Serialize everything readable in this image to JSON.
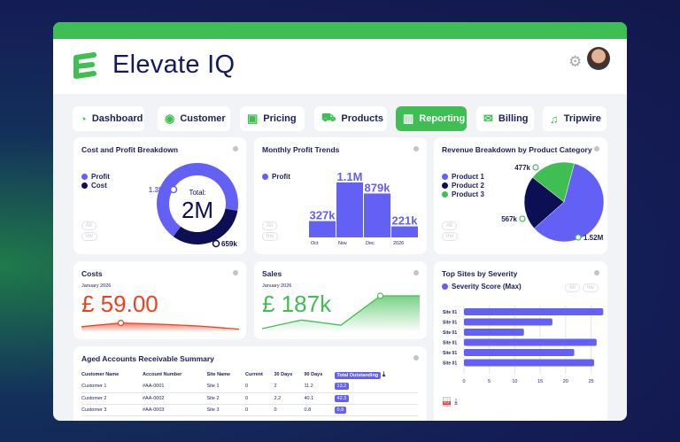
{
  "app": {
    "brand": "Elevate IQ",
    "accent": "#3fbf53",
    "primary": "#6360f5",
    "navy": "#0d0f55"
  },
  "header": {
    "settings_icon": "gear-icon",
    "avatar": "user-avatar"
  },
  "nav": [
    {
      "label": "Dashboard",
      "icon": "gauge-icon",
      "active": false
    },
    {
      "label": "Customer",
      "icon": "user-circle-icon",
      "active": false
    },
    {
      "label": "Pricing",
      "icon": "banknote-icon",
      "active": false
    },
    {
      "label": "Products",
      "icon": "truck-icon",
      "active": false
    },
    {
      "label": "Reporting",
      "icon": "bar-chart-icon",
      "active": true
    },
    {
      "label": "Billing",
      "icon": "envelope-icon",
      "active": false
    },
    {
      "label": "Tripwire",
      "icon": "bell-icon",
      "active": false
    }
  ],
  "filters": {
    "all": "All",
    "inv": "Inv"
  },
  "chart_data": [
    {
      "id": "cost-profit",
      "type": "pie",
      "title": "Cost and Profit Breakdown",
      "legend": [
        "Profit",
        "Cost"
      ],
      "values": [
        1380000,
        659000
      ],
      "labels": [
        "1.38M",
        "659k"
      ],
      "center_label": "Total:",
      "center_value": "2M",
      "colors": [
        "#6360f5",
        "#0d0f55"
      ]
    },
    {
      "id": "monthly-profit",
      "type": "bar",
      "title": "Monthly Profit Trends",
      "legend": [
        "Profit"
      ],
      "categories": [
        "Oct",
        "Nov",
        "Dec",
        "2026"
      ],
      "values": [
        327000,
        1100000,
        879000,
        221000
      ],
      "labels": [
        "327k",
        "1.1M",
        "879k",
        "221k"
      ],
      "color": "#6360f5"
    },
    {
      "id": "revenue-category",
      "type": "pie",
      "title": "Revenue Breakdown by Product Category",
      "legend": [
        "Product 1",
        "Product 2",
        "Product 3"
      ],
      "values": [
        1520000,
        567000,
        477000
      ],
      "labels": [
        "1.52M",
        "567k",
        "477k"
      ],
      "colors": [
        "#6360f5",
        "#0d0f55",
        "#3fbf53"
      ]
    },
    {
      "id": "top-sites",
      "type": "bar",
      "orientation": "horizontal",
      "title": "Top Sites by Severity",
      "legend": [
        "Severity Score (Max)"
      ],
      "categories": [
        "Site 01",
        "Site 01",
        "Site 01",
        "Site 01",
        "Site 01",
        "Site 01"
      ],
      "values": [
        27.4,
        17.4,
        11.8,
        26.1,
        21.7,
        25.6
      ],
      "xlim": [
        0,
        27
      ],
      "xticks": [
        0,
        5,
        10,
        15,
        20,
        25
      ],
      "grid": true,
      "color": "#6360f5"
    },
    {
      "id": "costs-trend",
      "type": "area",
      "values": [
        0.3,
        0.6,
        0.5,
        0.35,
        0.1
      ],
      "color": "#f2401e"
    },
    {
      "id": "sales-trend",
      "type": "area",
      "values": [
        0.05,
        0.3,
        0.15,
        1,
        1
      ],
      "color": "#3fbf53"
    }
  ],
  "costs": {
    "title": "Costs",
    "period": "January 2026",
    "value": "£ 59.00"
  },
  "sales": {
    "title": "Sales",
    "period": "January 2026",
    "value": "£ 187k"
  },
  "aged": {
    "title": "Aged Accounts Receivable Summary",
    "columns": [
      "Customer Name",
      "Account Number",
      "Site Name",
      "Current",
      "30 Days",
      "90 Days",
      "Total Outstanding"
    ],
    "rows": [
      [
        "Customer 1",
        "#AA-0001",
        "Site 1",
        "0",
        "2",
        "11.2",
        "13.2"
      ],
      [
        "Customer 2",
        "#AA-0002",
        "Site 2",
        "0",
        "2.2",
        "40.1",
        "42.3"
      ],
      [
        "Customer 3",
        "#AA-0003",
        "Site 3",
        "0",
        "0",
        "0.8",
        "0.8"
      ]
    ]
  },
  "export": {
    "pdf": "PDF"
  }
}
